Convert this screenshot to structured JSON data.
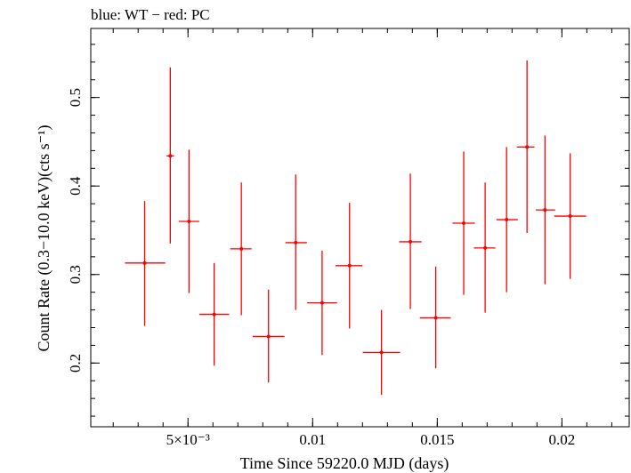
{
  "chart_data": {
    "type": "scatter",
    "title": "blue: WT − red: PC",
    "xlabel": "Time Since 59220.0 MJD (days)",
    "ylabel": "Count Rate (0.3−10.0 keV)(cts s⁻¹)",
    "xlim": [
      0.0011,
      0.0227
    ],
    "ylim": [
      0.128,
      0.578
    ],
    "x_ticks": [
      {
        "value": 0.005,
        "label": "5×10⁻³"
      },
      {
        "value": 0.01,
        "label": "0.01"
      },
      {
        "value": 0.015,
        "label": "0.015"
      },
      {
        "value": 0.02,
        "label": "0.02"
      }
    ],
    "y_ticks": [
      {
        "value": 0.2,
        "label": "0.2"
      },
      {
        "value": 0.3,
        "label": "0.3"
      },
      {
        "value": 0.4,
        "label": "0.4"
      },
      {
        "value": 0.5,
        "label": "0.5"
      }
    ],
    "series": [
      {
        "color": "#ff0000",
        "points": [
          {
            "x": 0.00326,
            "xerr_lo": 0.00079,
            "xerr_hi": 0.00083,
            "y": 0.313,
            "ylo": 0.242,
            "yhi": 0.383
          },
          {
            "x": 0.00429,
            "xerr_lo": 0.00015,
            "xerr_hi": 0.00015,
            "y": 0.434,
            "ylo": 0.335,
            "yhi": 0.534
          },
          {
            "x": 0.00504,
            "xerr_lo": 0.00041,
            "xerr_hi": 0.00041,
            "y": 0.36,
            "ylo": 0.279,
            "yhi": 0.441
          },
          {
            "x": 0.00605,
            "xerr_lo": 0.0006,
            "xerr_hi": 0.0006,
            "y": 0.255,
            "ylo": 0.197,
            "yhi": 0.313
          },
          {
            "x": 0.00714,
            "xerr_lo": 0.00045,
            "xerr_hi": 0.00041,
            "y": 0.329,
            "ylo": 0.254,
            "yhi": 0.404
          },
          {
            "x": 0.00823,
            "xerr_lo": 0.00064,
            "xerr_hi": 0.00064,
            "y": 0.23,
            "ylo": 0.178,
            "yhi": 0.283
          },
          {
            "x": 0.00932,
            "xerr_lo": 0.00041,
            "xerr_hi": 0.00045,
            "y": 0.336,
            "ylo": 0.26,
            "yhi": 0.413
          },
          {
            "x": 0.01038,
            "xerr_lo": 0.0006,
            "xerr_hi": 0.0006,
            "y": 0.268,
            "ylo": 0.209,
            "yhi": 0.327
          },
          {
            "x": 0.01148,
            "xerr_lo": 0.00056,
            "xerr_hi": 0.00052,
            "y": 0.31,
            "ylo": 0.239,
            "yhi": 0.381
          },
          {
            "x": 0.01276,
            "xerr_lo": 0.00075,
            "xerr_hi": 0.00075,
            "y": 0.212,
            "ylo": 0.164,
            "yhi": 0.26
          },
          {
            "x": 0.01392,
            "xerr_lo": 0.00045,
            "xerr_hi": 0.00045,
            "y": 0.337,
            "ylo": 0.261,
            "yhi": 0.414
          },
          {
            "x": 0.01494,
            "xerr_lo": 0.00064,
            "xerr_hi": 0.0006,
            "y": 0.251,
            "ylo": 0.194,
            "yhi": 0.309
          },
          {
            "x": 0.01606,
            "xerr_lo": 0.00045,
            "xerr_hi": 0.00045,
            "y": 0.358,
            "ylo": 0.277,
            "yhi": 0.439
          },
          {
            "x": 0.01692,
            "xerr_lo": 0.00045,
            "xerr_hi": 0.00041,
            "y": 0.33,
            "ylo": 0.257,
            "yhi": 0.404
          },
          {
            "x": 0.01778,
            "xerr_lo": 0.00041,
            "xerr_hi": 0.00045,
            "y": 0.362,
            "ylo": 0.28,
            "yhi": 0.444
          },
          {
            "x": 0.0186,
            "xerr_lo": 0.00041,
            "xerr_hi": 0.0003,
            "y": 0.444,
            "ylo": 0.347,
            "yhi": 0.542
          },
          {
            "x": 0.01932,
            "xerr_lo": 0.00037,
            "xerr_hi": 0.00041,
            "y": 0.373,
            "ylo": 0.289,
            "yhi": 0.457
          },
          {
            "x": 0.02033,
            "xerr_lo": 0.00064,
            "xerr_hi": 0.00064,
            "y": 0.366,
            "ylo": 0.295,
            "yhi": 0.437
          }
        ]
      }
    ],
    "grid": false
  }
}
